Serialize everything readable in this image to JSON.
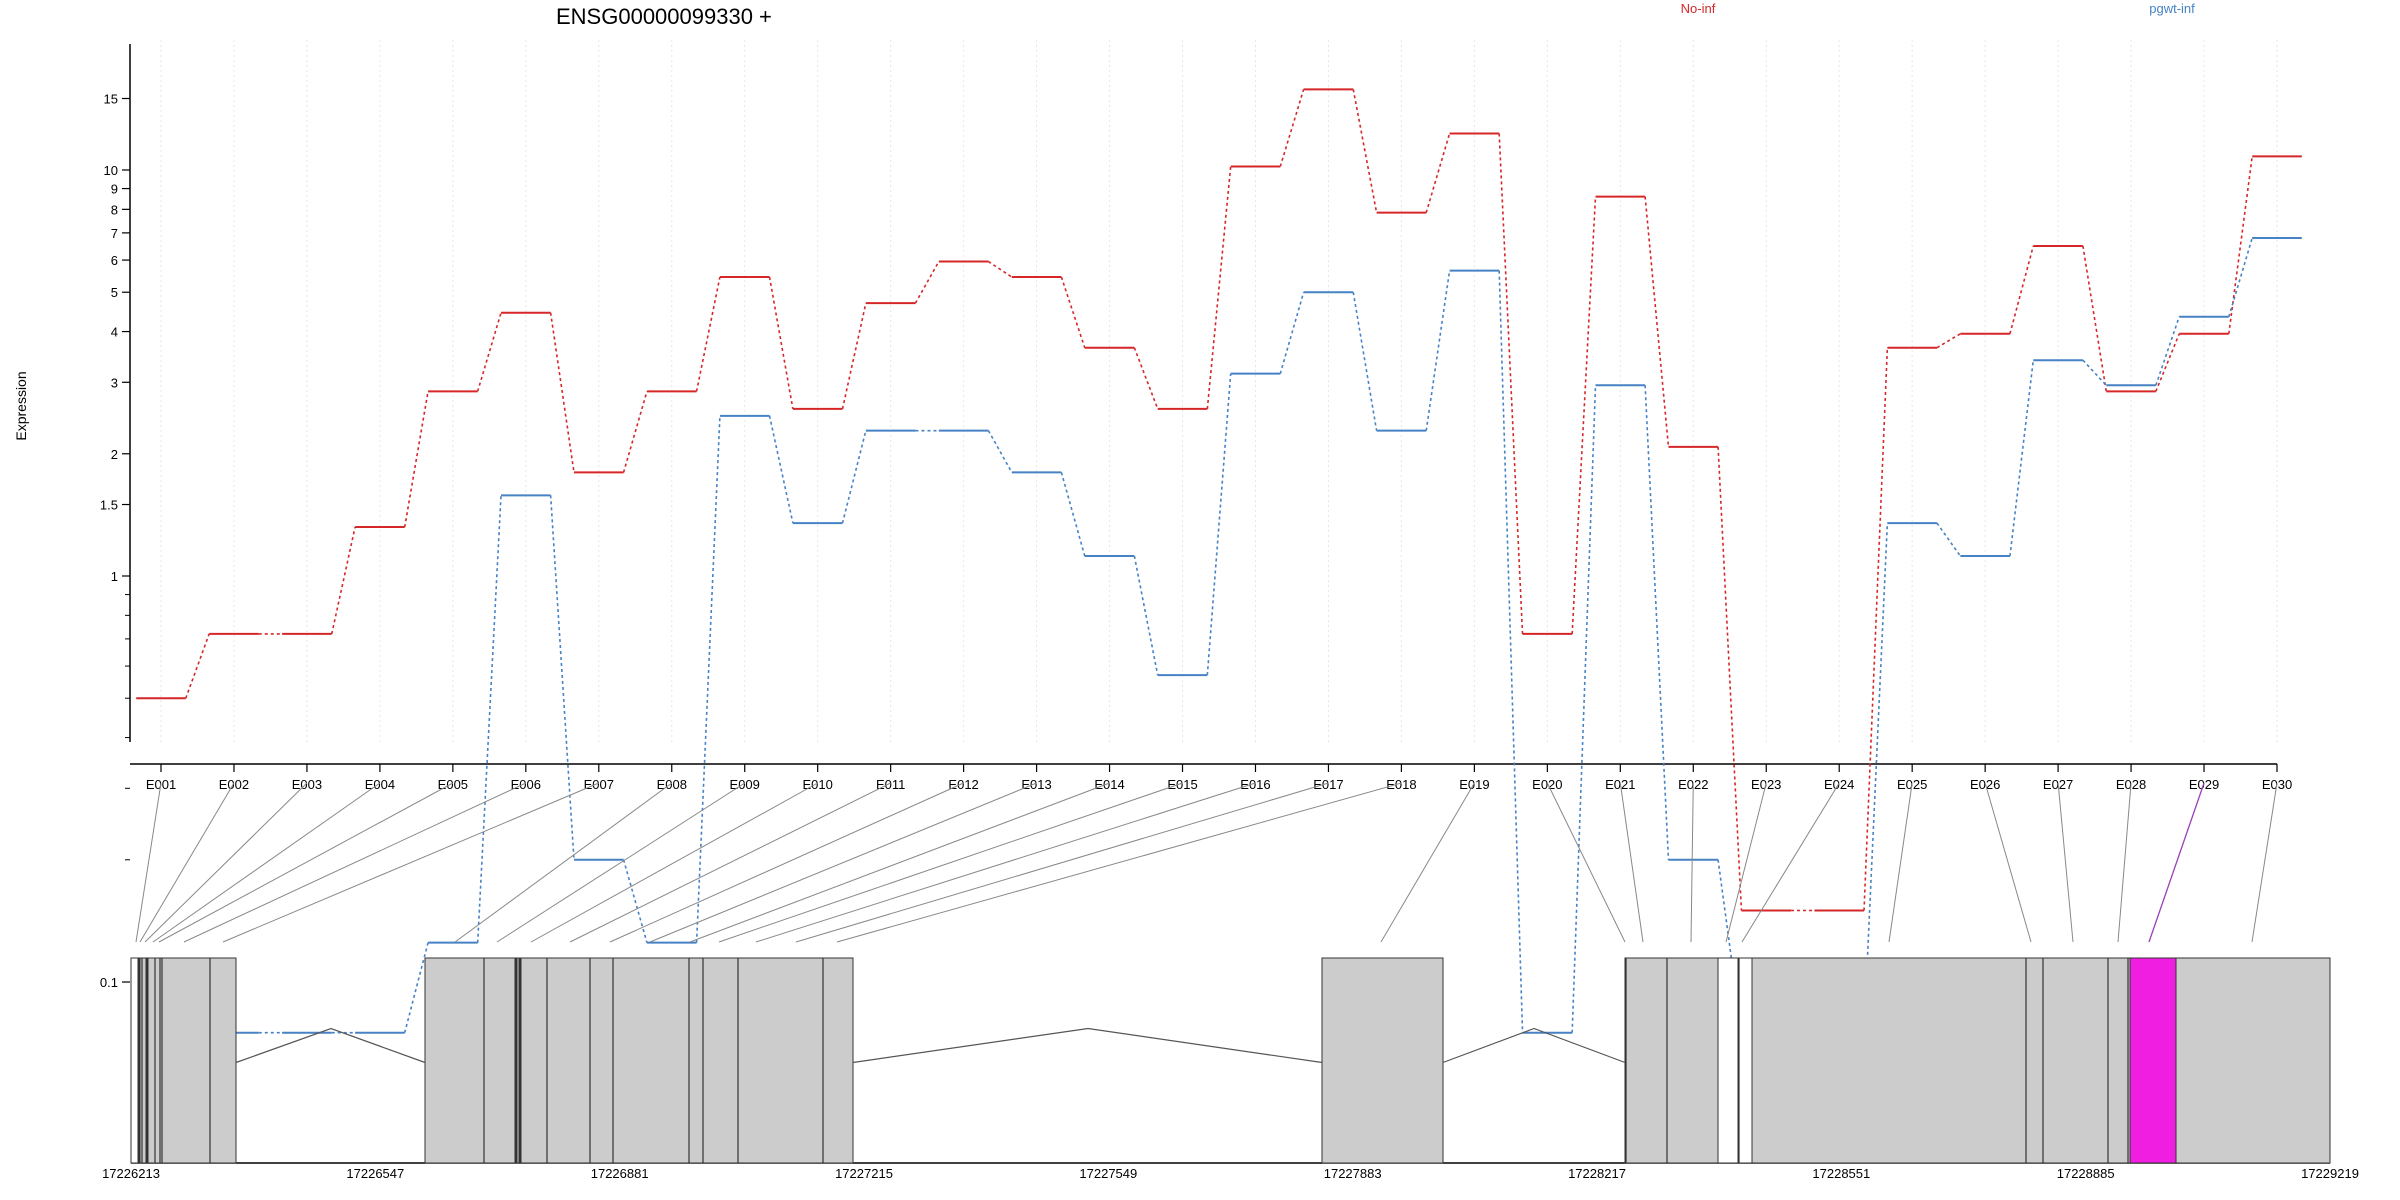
{
  "chart_data": {
    "type": "line",
    "title": "ENSG00000099330 +",
    "ylabel": "Expression",
    "y_scale": "log",
    "y_ticks": [
      0.1,
      1,
      1.5,
      2,
      3,
      4,
      5,
      6,
      7,
      8,
      9,
      10,
      15
    ],
    "y_tick_labels": [
      "0.1",
      "1",
      "1.5",
      "2",
      "3",
      "4",
      "5",
      "6",
      "7",
      "8",
      "9",
      "10",
      "15"
    ],
    "grid": "vertical-dotted",
    "legend_position": "top",
    "categories": [
      "E001",
      "E002",
      "E003",
      "E004",
      "E005",
      "E006",
      "E007",
      "E008",
      "E009",
      "E010",
      "E011",
      "E012",
      "E013",
      "E014",
      "E015",
      "E016",
      "E017",
      "E018",
      "E019",
      "E020",
      "E021",
      "E022",
      "E023",
      "E024",
      "E025",
      "E026",
      "E027",
      "E028",
      "E029",
      "E030"
    ],
    "series": [
      {
        "name": "No-inf",
        "color": "#d62728",
        "values": [
          0.5,
          0.72,
          0.72,
          1.32,
          2.85,
          4.45,
          1.8,
          2.85,
          5.45,
          2.58,
          4.7,
          5.95,
          5.45,
          3.65,
          2.58,
          10.2,
          15.8,
          7.85,
          12.3,
          0.72,
          8.6,
          2.08,
          0.15,
          0.15,
          3.65,
          3.95,
          6.5,
          2.85,
          3.95,
          10.8
        ]
      },
      {
        "name": "pgwt-inf",
        "color": "#4682c4",
        "values": [
          0.075,
          0.075,
          0.075,
          0.075,
          0.125,
          1.58,
          0.2,
          0.125,
          2.48,
          1.35,
          2.28,
          2.28,
          1.8,
          1.12,
          0.57,
          3.15,
          5.0,
          2.28,
          5.65,
          0.075,
          2.95,
          0.2,
          0.075,
          0.075,
          1.35,
          1.12,
          3.4,
          2.95,
          4.35,
          6.8
        ]
      }
    ],
    "gene_model": {
      "coordinate_labels": [
        "17226213",
        "17226547",
        "17226881",
        "17227215",
        "17227549",
        "17227883",
        "17228217",
        "17228551",
        "17228885",
        "17229219"
      ],
      "highlight_exon": "E029",
      "highlight_color": "#f01ee0",
      "exon_color": "#cccccc"
    }
  }
}
